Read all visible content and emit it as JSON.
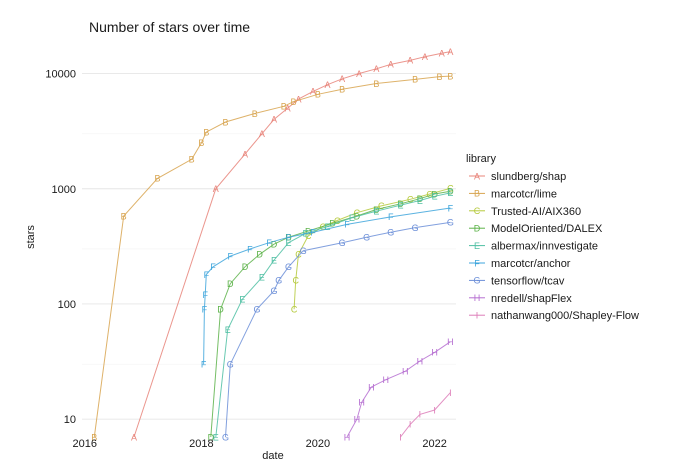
{
  "chart_data": {
    "type": "line",
    "title": "Number of stars over time",
    "xlabel": "date",
    "ylabel": "stars",
    "y_scale": "log10",
    "ylim": [
      7,
      17000
    ],
    "xlim": [
      "2015-12-15",
      "2022-05-15"
    ],
    "x_ticks": [
      "2016",
      "2018",
      "2020",
      "2022"
    ],
    "y_ticks": [
      "10",
      "100",
      "1000",
      "10000"
    ],
    "grid": true,
    "legend": {
      "title": "library",
      "position": "right"
    },
    "series": [
      {
        "name": "slundberg/shap",
        "symbol": "A",
        "color": "#e8847a",
        "points": [
          [
            "2016-11-05",
            7
          ],
          [
            "2018-04-01",
            1000
          ],
          [
            "2018-10-01",
            2000
          ],
          [
            "2019-01-15",
            3000
          ],
          [
            "2019-04-01",
            4000
          ],
          [
            "2019-06-25",
            5000
          ],
          [
            "2019-09-01",
            6000
          ],
          [
            "2019-12-01",
            7000
          ],
          [
            "2020-03-01",
            8000
          ],
          [
            "2020-06-01",
            9000
          ],
          [
            "2020-09-15",
            10000
          ],
          [
            "2021-01-01",
            11000
          ],
          [
            "2021-04-01",
            12000
          ],
          [
            "2021-08-01",
            13000
          ],
          [
            "2021-11-01",
            14000
          ],
          [
            "2022-02-15",
            15000
          ],
          [
            "2022-04-10",
            15500
          ]
        ]
      },
      {
        "name": "marcotcr/lime",
        "symbol": "B",
        "color": "#d8a550",
        "points": [
          [
            "2016-03-01",
            7
          ],
          [
            "2016-09-01",
            580
          ],
          [
            "2017-04-01",
            1230
          ],
          [
            "2017-11-01",
            1800
          ],
          [
            "2018-01-01",
            2500
          ],
          [
            "2018-02-01",
            3100
          ],
          [
            "2018-06-01",
            3800
          ],
          [
            "2018-12-01",
            4500
          ],
          [
            "2019-06-01",
            5200
          ],
          [
            "2019-08-01",
            5700
          ],
          [
            "2020-01-01",
            6600
          ],
          [
            "2020-06-01",
            7300
          ],
          [
            "2021-01-01",
            8200
          ],
          [
            "2021-09-01",
            8900
          ],
          [
            "2022-02-01",
            9400
          ],
          [
            "2022-04-10",
            9500
          ]
        ]
      },
      {
        "name": "Trusted-AI/AIX360",
        "symbol": "C",
        "color": "#b5c93b",
        "points": [
          [
            "2019-08-05",
            90
          ],
          [
            "2019-08-15",
            160
          ],
          [
            "2019-09-01",
            270
          ],
          [
            "2019-11-01",
            390
          ],
          [
            "2020-02-01",
            470
          ],
          [
            "2020-05-01",
            530
          ],
          [
            "2020-09-01",
            620
          ],
          [
            "2021-02-01",
            710
          ],
          [
            "2021-08-01",
            810
          ],
          [
            "2021-12-01",
            900
          ],
          [
            "2022-04-10",
            1010
          ]
        ]
      },
      {
        "name": "ModelOriented/DALEX",
        "symbol": "D",
        "color": "#5db34a",
        "points": [
          [
            "2018-03-01",
            7
          ],
          [
            "2018-05-01",
            90
          ],
          [
            "2018-07-01",
            150
          ],
          [
            "2018-10-01",
            210
          ],
          [
            "2019-01-01",
            270
          ],
          [
            "2019-04-01",
            330
          ],
          [
            "2019-07-01",
            380
          ],
          [
            "2019-11-01",
            430
          ],
          [
            "2020-04-01",
            500
          ],
          [
            "2020-09-01",
            580
          ],
          [
            "2021-01-01",
            660
          ],
          [
            "2021-06-01",
            740
          ],
          [
            "2021-10-01",
            820
          ],
          [
            "2022-01-01",
            900
          ],
          [
            "2022-04-10",
            950
          ]
        ]
      },
      {
        "name": "albermax/innvestigate",
        "symbol": "E",
        "color": "#4fbfa3",
        "points": [
          [
            "2018-04-01",
            7
          ],
          [
            "2018-06-15",
            60
          ],
          [
            "2018-09-15",
            110
          ],
          [
            "2019-01-15",
            170
          ],
          [
            "2019-04-01",
            240
          ],
          [
            "2019-07-01",
            340
          ],
          [
            "2019-10-15",
            410
          ],
          [
            "2020-03-01",
            470
          ],
          [
            "2020-08-01",
            560
          ],
          [
            "2021-01-01",
            640
          ],
          [
            "2021-06-01",
            720
          ],
          [
            "2021-10-01",
            790
          ],
          [
            "2022-01-01",
            860
          ],
          [
            "2022-04-10",
            920
          ]
        ]
      },
      {
        "name": "marcotcr/anchor",
        "symbol": "F",
        "color": "#3fa6dc",
        "points": [
          [
            "2018-01-15",
            30
          ],
          [
            "2018-01-20",
            90
          ],
          [
            "2018-01-25",
            120
          ],
          [
            "2018-02-01",
            180
          ],
          [
            "2018-03-15",
            210
          ],
          [
            "2018-07-01",
            260
          ],
          [
            "2018-11-01",
            300
          ],
          [
            "2019-03-01",
            340
          ],
          [
            "2019-07-01",
            380
          ],
          [
            "2019-12-01",
            420
          ],
          [
            "2020-07-01",
            490
          ],
          [
            "2021-04-01",
            570
          ],
          [
            "2022-04-10",
            680
          ]
        ]
      },
      {
        "name": "tensorflow/tcav",
        "symbol": "G",
        "color": "#6c8fd8",
        "points": [
          [
            "2018-06-01",
            7
          ],
          [
            "2018-07-01",
            30
          ],
          [
            "2018-12-15",
            90
          ],
          [
            "2019-04-01",
            130
          ],
          [
            "2019-05-01",
            160
          ],
          [
            "2019-07-01",
            210
          ],
          [
            "2019-10-01",
            290
          ],
          [
            "2020-06-01",
            340
          ],
          [
            "2020-11-01",
            380
          ],
          [
            "2021-04-01",
            420
          ],
          [
            "2021-09-01",
            460
          ],
          [
            "2022-04-10",
            510
          ]
        ]
      },
      {
        "name": "nredell/shapFlex",
        "symbol": "H",
        "color": "#b66fd1",
        "points": [
          [
            "2020-07-01",
            7
          ],
          [
            "2020-09-01",
            10
          ],
          [
            "2020-10-01",
            14
          ],
          [
            "2020-12-01",
            19
          ],
          [
            "2021-03-01",
            22
          ],
          [
            "2021-07-01",
            26
          ],
          [
            "2021-10-01",
            32
          ],
          [
            "2022-01-01",
            38
          ],
          [
            "2022-04-10",
            47
          ]
        ]
      },
      {
        "name": "nathanwang000/Shapley-Flow",
        "symbol": "I",
        "color": "#dd7db8",
        "points": [
          [
            "2021-06-01",
            7
          ],
          [
            "2021-08-01",
            9
          ],
          [
            "2021-10-01",
            11
          ],
          [
            "2022-01-01",
            12
          ],
          [
            "2022-04-10",
            17
          ]
        ]
      }
    ]
  }
}
